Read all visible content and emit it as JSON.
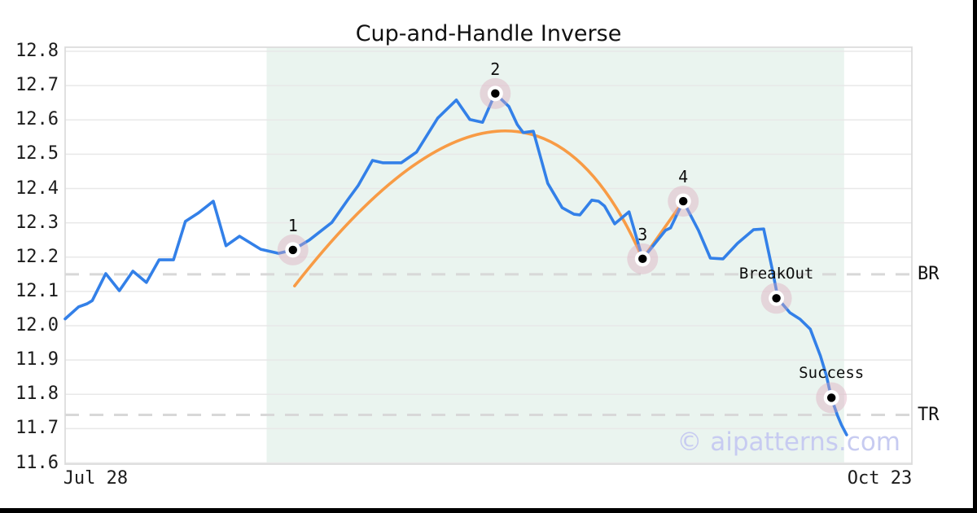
{
  "page": {
    "title": "Cup-and-Handle Inverse",
    "watermark": "© aipatterns.com"
  },
  "chart_data": {
    "type": "line",
    "title": "Cup-and-Handle Inverse",
    "grid": "horizontal",
    "legend": "none",
    "x_axis": {
      "tick_labels": [
        {
          "label": "Jul 28",
          "pos": 0.036
        },
        {
          "label": "Oct 23",
          "pos": 0.962
        }
      ]
    },
    "y_axis": {
      "ylim": [
        11.6,
        12.8
      ],
      "ticks": [
        "12.8",
        "12.7",
        "12.6",
        "12.5",
        "12.4",
        "12.3",
        "12.2",
        "12.1",
        "12.0",
        "11.9",
        "11.8",
        "11.7",
        "11.6"
      ]
    },
    "shaded_region": {
      "from": 0.238,
      "to": 0.92,
      "color": "#eaf4ef"
    },
    "levels": [
      {
        "label": "BR",
        "value": 12.15
      },
      {
        "label": "TR",
        "value": 11.74
      }
    ],
    "series": [
      {
        "name": "price",
        "type": "line",
        "color": "#3380e8",
        "points": [
          [
            0.0,
            12.02
          ],
          [
            0.016,
            12.055
          ],
          [
            0.026,
            12.064
          ],
          [
            0.032,
            12.073
          ],
          [
            0.048,
            12.152
          ],
          [
            0.064,
            12.102
          ],
          [
            0.08,
            12.159
          ],
          [
            0.096,
            12.126
          ],
          [
            0.111,
            12.192
          ],
          [
            0.128,
            12.192
          ],
          [
            0.142,
            12.304
          ],
          [
            0.157,
            12.328
          ],
          [
            0.175,
            12.363
          ],
          [
            0.19,
            12.233
          ],
          [
            0.206,
            12.261
          ],
          [
            0.231,
            12.223
          ],
          [
            0.252,
            12.211
          ],
          [
            0.269,
            12.221
          ],
          [
            0.288,
            12.249
          ],
          [
            0.315,
            12.301
          ],
          [
            0.334,
            12.368
          ],
          [
            0.346,
            12.408
          ],
          [
            0.363,
            12.482
          ],
          [
            0.375,
            12.475
          ],
          [
            0.397,
            12.475
          ],
          [
            0.415,
            12.506
          ],
          [
            0.44,
            12.605
          ],
          [
            0.462,
            12.658
          ],
          [
            0.478,
            12.601
          ],
          [
            0.493,
            12.593
          ],
          [
            0.508,
            12.677
          ],
          [
            0.524,
            12.639
          ],
          [
            0.534,
            12.586
          ],
          [
            0.541,
            12.563
          ],
          [
            0.553,
            12.567
          ],
          [
            0.57,
            12.415
          ],
          [
            0.587,
            12.344
          ],
          [
            0.601,
            12.325
          ],
          [
            0.608,
            12.323
          ],
          [
            0.622,
            12.366
          ],
          [
            0.63,
            12.363
          ],
          [
            0.637,
            12.349
          ],
          [
            0.649,
            12.297
          ],
          [
            0.666,
            12.332
          ],
          [
            0.682,
            12.195
          ],
          [
            0.709,
            12.278
          ],
          [
            0.715,
            12.285
          ],
          [
            0.73,
            12.363
          ],
          [
            0.748,
            12.278
          ],
          [
            0.762,
            12.197
          ],
          [
            0.777,
            12.195
          ],
          [
            0.794,
            12.24
          ],
          [
            0.813,
            12.28
          ],
          [
            0.825,
            12.282
          ],
          [
            0.835,
            12.166
          ],
          [
            0.842,
            12.078
          ],
          [
            0.856,
            12.038
          ],
          [
            0.868,
            12.019
          ],
          [
            0.88,
            11.99
          ],
          [
            0.892,
            11.912
          ],
          [
            0.899,
            11.855
          ],
          [
            0.905,
            11.789
          ],
          [
            0.912,
            11.739
          ],
          [
            0.917,
            11.71
          ],
          [
            0.923,
            11.682
          ]
        ]
      },
      {
        "name": "cup-arc",
        "type": "curve",
        "color": "#f89b45",
        "start": [
          0.271,
          12.116
        ],
        "apex": [
          0.51,
          12.567
        ],
        "end": [
          0.682,
          12.195
        ]
      },
      {
        "name": "handle-line",
        "type": "segment",
        "color": "#f89b45",
        "from": [
          0.682,
          12.195
        ],
        "to": [
          0.73,
          12.363
        ]
      }
    ],
    "annotations": [
      {
        "label": "1",
        "x": 0.269,
        "value": 12.221
      },
      {
        "label": "2",
        "x": 0.508,
        "value": 12.677
      },
      {
        "label": "3",
        "x": 0.682,
        "value": 12.195
      },
      {
        "label": "4",
        "x": 0.73,
        "value": 12.363
      },
      {
        "label": "BreakOut",
        "x": 0.84,
        "value": 12.08
      },
      {
        "label": "Success",
        "x": 0.905,
        "value": 11.79
      }
    ],
    "colors": {
      "price": "#3380e8",
      "pattern": "#f89b45",
      "shade": "#eaf4ef",
      "grid": "#e8e8e8",
      "spine": "#dcdcdc",
      "dashed": "#d8d8d8",
      "halo": "rgba(219,168,188,0.40)",
      "watermark": "#c7cbf1"
    }
  }
}
